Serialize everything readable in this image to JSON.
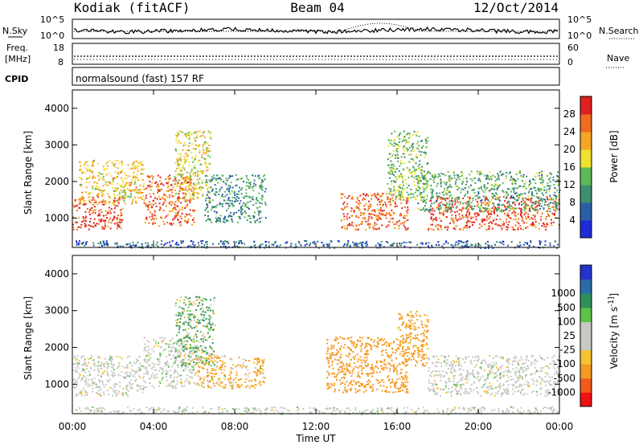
{
  "header": {
    "radar": "Kodiak (fitACF)",
    "beam": "Beam 04",
    "date": "12/Oct/2014"
  },
  "noise_panel": {
    "left_label": "N.Sky",
    "left_ticks": [
      "10^5",
      "10^0"
    ],
    "right_label": "N.Search",
    "right_ticks": [
      "10^5",
      "10^0"
    ]
  },
  "freq_panel": {
    "left_label_1": "Freq.",
    "left_label_2": "[MHz]",
    "left_ticks": [
      "18",
      "8"
    ],
    "right_label": "Nave",
    "right_ticks": [
      "60",
      "0"
    ]
  },
  "cpid_panel": {
    "label": "CPID",
    "text": "normalsound (fast) 157 RF"
  },
  "x_axis": {
    "label": "Time UT",
    "ticks": [
      "00:00",
      "04:00",
      "08:00",
      "12:00",
      "16:00",
      "20:00",
      "00:00"
    ]
  },
  "colors": {
    "power": [
      "#1c2cd8",
      "#2a5fa8",
      "#3d8f6e",
      "#5dbb55",
      "#f0e030",
      "#f5a623",
      "#f06a20",
      "#e02020"
    ],
    "velocity": [
      "#ee1111",
      "#f05a1a",
      "#f59a22",
      "#f5c232",
      "#c8c8c4",
      "#c8c8c4",
      "#5cc24a",
      "#2f8f5a",
      "#2a6ca8",
      "#2233cc"
    ]
  },
  "chart_data": [
    {
      "type": "heatmap",
      "title": "",
      "xlabel": "Time UT",
      "ylabel": "Slant Range [km]",
      "xlim": [
        0,
        24
      ],
      "ylim": [
        200,
        4500
      ],
      "yticks": [
        "1000",
        "2000",
        "3000",
        "4000"
      ],
      "colorbar": {
        "label": "Power [dB]",
        "ticks": [
          "4",
          "8",
          "12",
          "16",
          "20",
          "24",
          "28"
        ],
        "range": [
          0,
          32
        ]
      },
      "regions": [
        {
          "t": [
            0.0,
            2.5
          ],
          "r": [
            700,
            1600
          ],
          "value": 28
        },
        {
          "t": [
            0.3,
            3.5
          ],
          "r": [
            1400,
            2600
          ],
          "value": 20
        },
        {
          "t": [
            3.5,
            6.0
          ],
          "r": [
            800,
            2200
          ],
          "value": 26
        },
        {
          "t": [
            5.0,
            6.8
          ],
          "r": [
            1500,
            3400
          ],
          "value": 18
        },
        {
          "t": [
            6.5,
            9.5
          ],
          "r": [
            900,
            2200
          ],
          "value": 10
        },
        {
          "t": [
            13.2,
            16.5
          ],
          "r": [
            700,
            1700
          ],
          "value": 26
        },
        {
          "t": [
            15.5,
            17.5
          ],
          "r": [
            1500,
            3400
          ],
          "value": 14
        },
        {
          "t": [
            17.5,
            24.0
          ],
          "r": [
            700,
            1600
          ],
          "value": 28
        },
        {
          "t": [
            17.0,
            24.0
          ],
          "r": [
            1200,
            2300
          ],
          "value": 12
        },
        {
          "t": [
            0.0,
            24.0
          ],
          "r": [
            200,
            400
          ],
          "value": 6
        }
      ]
    },
    {
      "type": "heatmap",
      "title": "",
      "xlabel": "Time UT",
      "ylabel": "Slant Range [km]",
      "xlim": [
        0,
        24
      ],
      "ylim": [
        200,
        4500
      ],
      "yticks": [
        "1000",
        "2000",
        "3000",
        "4000"
      ],
      "colorbar": {
        "label": "Velocity [m s^-1]",
        "ticks": [
          "-1000",
          "-500",
          "-100",
          "-25",
          "25",
          "100",
          "500",
          "1000"
        ]
      },
      "regions": [
        {
          "t": [
            0.0,
            3.5
          ],
          "r": [
            700,
            1800
          ],
          "value": 0
        },
        {
          "t": [
            3.5,
            6.0
          ],
          "r": [
            900,
            2300
          ],
          "value": 0
        },
        {
          "t": [
            5.0,
            7.0
          ],
          "r": [
            1500,
            3400
          ],
          "value": 80
        },
        {
          "t": [
            6.0,
            9.5
          ],
          "r": [
            900,
            1800
          ],
          "value": -120
        },
        {
          "t": [
            12.5,
            16.5
          ],
          "r": [
            800,
            2300
          ],
          "value": -250
        },
        {
          "t": [
            16.0,
            17.5
          ],
          "r": [
            1500,
            3000
          ],
          "value": -200
        },
        {
          "t": [
            17.5,
            24.0
          ],
          "r": [
            700,
            1800
          ],
          "value": 0
        },
        {
          "t": [
            0.0,
            24.0
          ],
          "r": [
            200,
            400
          ],
          "value": 0
        }
      ]
    }
  ]
}
